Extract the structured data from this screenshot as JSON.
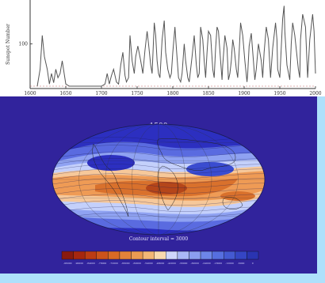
{
  "chart_data": [
    {
      "type": "line",
      "ylabel": "Sunspot Number",
      "x_ticks": [
        "1600",
        "1650",
        "1700",
        "1750",
        "1800",
        "1850",
        "1900",
        "1950",
        "2000"
      ],
      "y_ticks": [
        "100"
      ],
      "xlim": [
        1600,
        2000
      ],
      "ylim": [
        0,
        200
      ],
      "series": [
        {
          "color": "#555555",
          "x": [
            1610,
            1614,
            1617,
            1620,
            1624,
            1627,
            1630,
            1633,
            1636,
            1639,
            1642,
            1645,
            1650,
            1655,
            1660,
            1700,
            1705,
            1708,
            1711,
            1714,
            1717,
            1721,
            1724,
            1727,
            1730,
            1733,
            1735,
            1738,
            1740,
            1743,
            1746,
            1748,
            1751,
            1755,
            1758,
            1761,
            1764,
            1766,
            1769,
            1771,
            1774,
            1776,
            1778,
            1780,
            1782,
            1785,
            1788,
            1790,
            1793,
            1796,
            1798,
            1800,
            1803,
            1805,
            1808,
            1811,
            1813,
            1816,
            1818,
            1821,
            1823,
            1825,
            1827,
            1830,
            1833,
            1835,
            1837,
            1839,
            1842,
            1844,
            1846,
            1848,
            1850,
            1853,
            1856,
            1858,
            1860,
            1862,
            1864,
            1867,
            1869,
            1870,
            1873,
            1876,
            1878,
            1880,
            1882,
            1884,
            1886,
            1889,
            1891,
            1893,
            1895,
            1898,
            1901,
            1904,
            1905,
            1907,
            1910,
            1913,
            1915,
            1917,
            1920,
            1924,
            1926,
            1928,
            1931,
            1934,
            1936,
            1937,
            1940,
            1944,
            1946,
            1947,
            1950,
            1954,
            1956,
            1957,
            1960,
            1964,
            1966,
            1968,
            1971,
            1976,
            1978,
            1979,
            1982,
            1986,
            1988,
            1989,
            1992,
            1996,
            1998,
            2000
          ],
          "y": [
            0,
            40,
            120,
            70,
            40,
            5,
            30,
            8,
            40,
            20,
            30,
            60,
            5,
            0,
            0,
            0,
            5,
            30,
            5,
            25,
            40,
            10,
            5,
            50,
            80,
            25,
            10,
            20,
            120,
            60,
            30,
            70,
            95,
            60,
            30,
            85,
            130,
            100,
            50,
            30,
            150,
            120,
            60,
            30,
            20,
            110,
            155,
            80,
            40,
            20,
            30,
            80,
            140,
            90,
            20,
            10,
            30,
            100,
            60,
            20,
            10,
            40,
            70,
            120,
            50,
            20,
            30,
            140,
            110,
            60,
            20,
            80,
            130,
            120,
            40,
            20,
            90,
            140,
            130,
            60,
            15,
            50,
            120,
            90,
            15,
            30,
            60,
            110,
            90,
            40,
            20,
            80,
            150,
            120,
            60,
            10,
            30,
            95,
            125,
            60,
            15,
            40,
            100,
            60,
            20,
            80,
            140,
            110,
            50,
            20,
            90,
            150,
            110,
            40,
            20,
            160,
            190,
            130,
            50,
            15,
            100,
            150,
            120,
            40,
            20,
            110,
            170,
            140,
            60,
            20,
            110,
            170,
            130,
            30
          ]
        }
      ]
    },
    {
      "type": "heatmap",
      "title": "1500",
      "annotation": "Contour interval = 3000",
      "projection": "mollweide",
      "colors": {
        "background": "#31239c",
        "ocean_band_1": "#2c2fc0",
        "ocean_band_2": "#5a6be0",
        "ocean_band_3": "#8fa2f2",
        "ocean_band_4": "#c4d0fb",
        "warm_band_1": "#f6c89a",
        "warm_band_2": "#ef9b55",
        "warm_band_3": "#d9712c",
        "warm_band_4": "#b5461a"
      },
      "colorbar": [
        "#8a1a0e",
        "#a6270f",
        "#bc3c14",
        "#cc531b",
        "#d86a25",
        "#e3823a",
        "#eb9a52",
        "#f2b676",
        "#f8d9ae",
        "#cfd6fb",
        "#aab8f6",
        "#8b9ef0",
        "#6d85e8",
        "#566edf",
        "#4459d2",
        "#3545c4",
        "#2a34b1"
      ],
      "colorbar_labels": [
        "-96000",
        "-90000",
        "-84000",
        "-78000",
        "-72000",
        "-66000",
        "-60000",
        "-54000",
        "-48000",
        "-42000",
        "-36000",
        "-30000",
        "-24000",
        "-18000",
        "-12000",
        "-6000",
        "0"
      ]
    }
  ]
}
